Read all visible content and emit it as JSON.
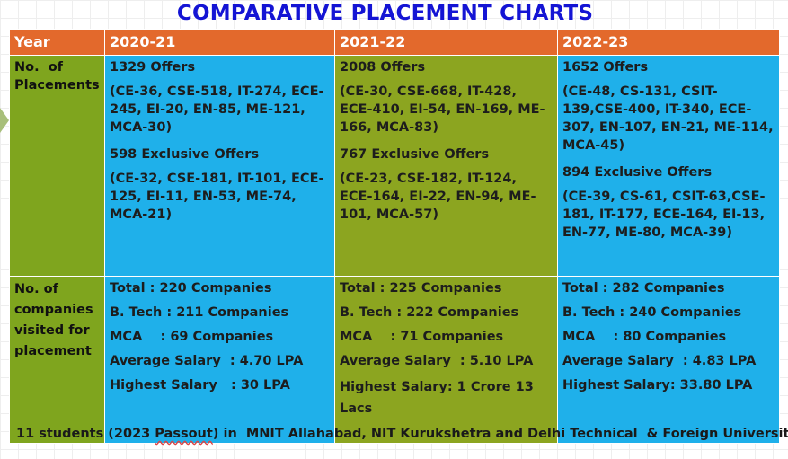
{
  "title": "COMPARATIVE PLACEMENT CHARTS",
  "header": {
    "year": "Year",
    "y1": "2020-21",
    "y2": "2021-22",
    "y3": "2022-23"
  },
  "placements": {
    "label_line1": "No.  of",
    "label_line2": "Placements",
    "y1": {
      "offers": "1329 Offers",
      "offers_breakdown": "(CE-36, CSE-518, IT-274, ECE-245, EI-20, EN-85, ME-121, MCA-30)",
      "exclusive": "598 Exclusive Offers",
      "exclusive_breakdown": "(CE-32, CSE-181, IT-101, ECE-125, EI-11, EN-53, ME-74, MCA-21)"
    },
    "y2": {
      "offers": "2008 Offers",
      "offers_breakdown": "(CE-30, CSE-668, IT-428, ECE-410, EI-54, EN-169, ME-166, MCA-83)",
      "exclusive": "767 Exclusive Offers",
      "exclusive_breakdown": "(CE-23, CSE-182, IT-124, ECE-164, EI-22, EN-94, ME-101, MCA-57)"
    },
    "y3": {
      "offers": "1652 Offers",
      "offers_breakdown": "(CE-48, CS-131, CSIT-139,CSE-400, IT-340, ECE-307, EN-107, EN-21, ME-114, MCA-45)",
      "exclusive": "894 Exclusive Offers",
      "exclusive_breakdown": "(CE-39, CS-61, CSIT-63,CSE-181, IT-177, ECE-164, EI-13, EN-77, ME-80, MCA-39)"
    }
  },
  "companies": {
    "label_line1": "No. of",
    "label_line2": "companies",
    "label_line3": "visited for",
    "label_line4": "placement",
    "y1": {
      "total": "Total : 220 Companies",
      "btech": "B. Tech : 211 Companies",
      "mca": "MCA    : 69 Companies",
      "avg": "Average Salary  : 4.70 LPA",
      "high": "Highest Salary   : 30 LPA"
    },
    "y2": {
      "total": "Total : 225 Companies",
      "btech": "B. Tech : 222 Companies",
      "mca": "MCA    : 71 Companies",
      "avg": "Average Salary  : 5.10 LPA",
      "high": "Highest Salary: 1 Crore 13 Lacs"
    },
    "y3": {
      "total": "Total : 282 Companies",
      "btech": "B. Tech : 240 Companies",
      "mca": "MCA    : 80 Companies",
      "avg": "Average Salary  : 4.83 LPA",
      "high": "Highest Salary: 33.80 LPA"
    }
  },
  "note": {
    "before": "11 students (2023 ",
    "passout": "Passout",
    "after": ") in  MNIT Allahabad, NIT Kurukshetra and Delhi Technical  & Foreign University"
  },
  "colors": {
    "title": "#1414d4",
    "header_bg": "#e3692c",
    "label_bg": "#7fa51e",
    "blue_cell": "#1fb0ea",
    "olive_cell": "#8ca520"
  }
}
